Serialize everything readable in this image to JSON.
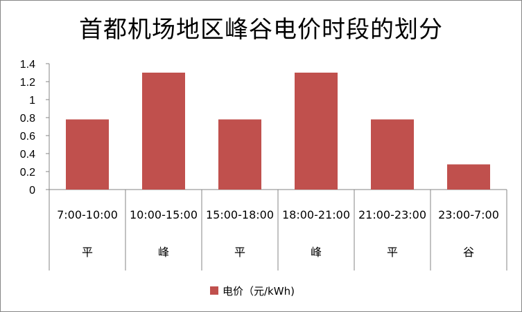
{
  "chart_data": {
    "type": "bar",
    "title": "首都机场地区峰谷电价时段的划分",
    "categories": [
      "7:00-10:00",
      "10:00-15:00",
      "15:00-18:00",
      "18:00-21:00",
      "21:00-23:00",
      "23:00-7:00"
    ],
    "category_labels": [
      "平",
      "峰",
      "平",
      "峰",
      "平",
      "谷"
    ],
    "series": [
      {
        "name": "电价（元/kWh)",
        "color": "#c0504d",
        "values": [
          0.78,
          1.3,
          0.78,
          1.3,
          0.78,
          0.28
        ]
      }
    ],
    "yticks": [
      "0",
      "0.2",
      "0.4",
      "0.6",
      "0.8",
      "1",
      "1.2",
      "1.4"
    ],
    "ylim": [
      0,
      1.4
    ],
    "grid": false,
    "legend": "bottom"
  }
}
